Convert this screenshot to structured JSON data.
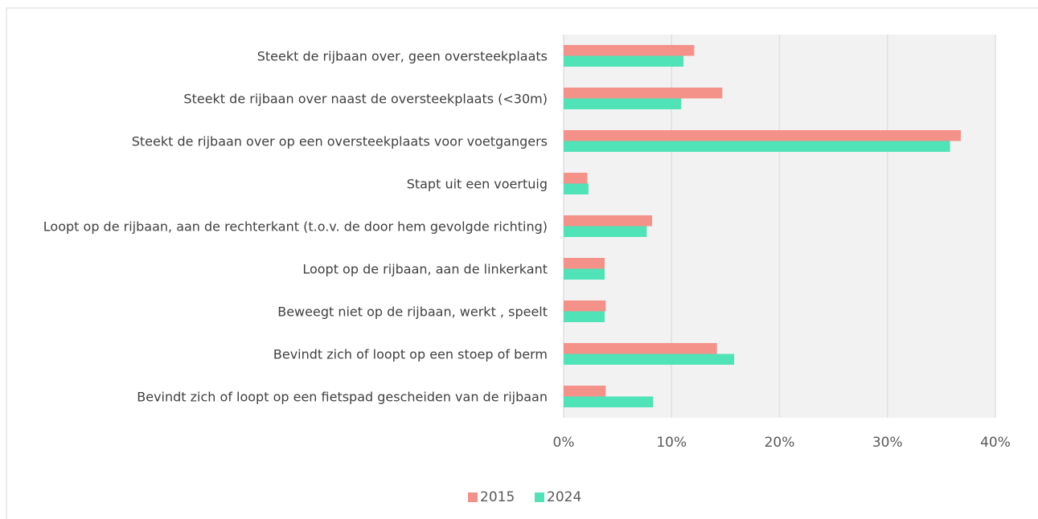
{
  "chart_data": {
    "type": "hbar",
    "categories": [
      "Steekt de rijbaan over, geen oversteekplaats",
      "Steekt de rijbaan over naast de oversteekplaats (<30m)",
      "Steekt de rijbaan over op een oversteekplaats voor voetgangers",
      "Stapt uit een voertuig",
      "Loopt op de rijbaan, aan de rechterkant (t.o.v. de door hem gevolgde richting)",
      "Loopt op de rijbaan, aan de linkerkant",
      "Beweegt niet op de rijbaan, werkt , speelt",
      "Bevindt zich of loopt op een stoep of berm",
      "Bevindt zich of loopt op een fietspad gescheiden van de rijbaan"
    ],
    "series": [
      {
        "name": "2015",
        "color": "#f4928a",
        "values": [
          12.1,
          14.7,
          36.8,
          2.2,
          8.2,
          3.8,
          3.9,
          14.2,
          3.9
        ]
      },
      {
        "name": "2024",
        "color": "#50e3b8",
        "values": [
          11.1,
          10.9,
          35.8,
          2.3,
          7.7,
          3.8,
          3.8,
          15.8,
          8.3
        ]
      }
    ],
    "xlim": [
      0,
      40
    ],
    "xticks": [
      {
        "value": 0,
        "label": "0%"
      },
      {
        "value": 10,
        "label": "10%"
      },
      {
        "value": 20,
        "label": "20%"
      },
      {
        "value": 30,
        "label": "30%"
      },
      {
        "value": 40,
        "label": "40%"
      }
    ],
    "grid": true,
    "legend": "bottom"
  }
}
